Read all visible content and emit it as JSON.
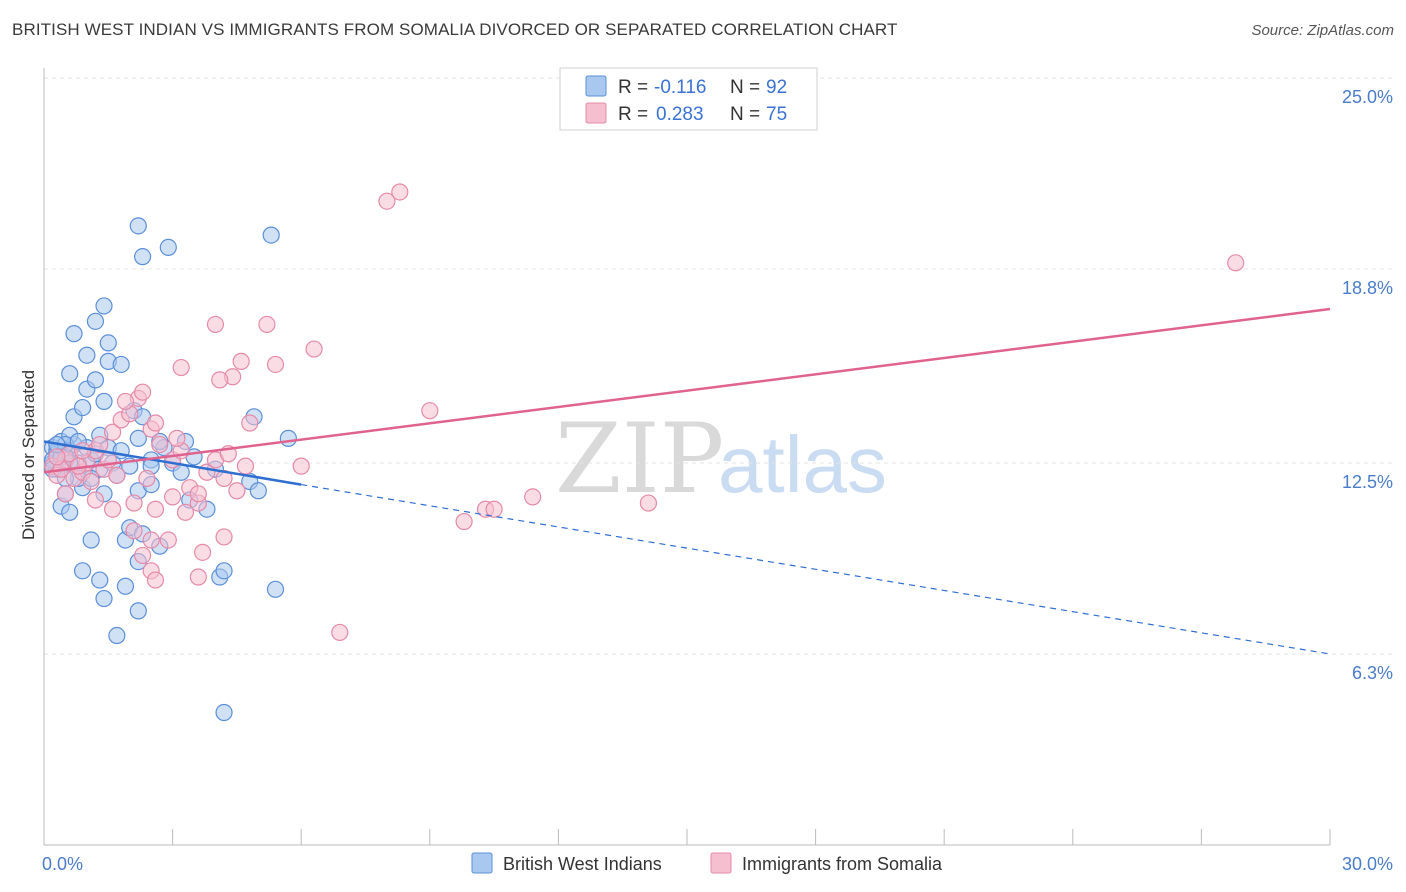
{
  "header": {
    "title": "BRITISH WEST INDIAN VS IMMIGRANTS FROM SOMALIA DIVORCED OR SEPARATED CORRELATION CHART",
    "source": "Source: ZipAtlas.com"
  },
  "watermark": {
    "zip": "ZIP",
    "atlas": "atlas"
  },
  "colors": {
    "blue_fill": "#a9c8ef",
    "blue_stroke": "#5b8fd8",
    "blue_line": "#2f6fd0",
    "pink_fill": "#f5bfd0",
    "pink_stroke": "#e58aa8",
    "pink_line": "#e0628f",
    "axis_label": "#4a7cc9",
    "grid": "#e3e3e3"
  },
  "legend": {
    "r_label": "R =",
    "n_label": "N =",
    "entries": [
      {
        "series": "blue",
        "r": "-0.116",
        "n": "92"
      },
      {
        "series": "pink",
        "r": "0.283",
        "n": "75"
      }
    ]
  },
  "chart_data": {
    "type": "scatter",
    "title": "BRITISH WEST INDIAN VS IMMIGRANTS FROM SOMALIA DIVORCED OR SEPARATED CORRELATION CHART",
    "xlabel": "",
    "ylabel": "Divorced or Separated",
    "xlim": [
      0,
      30
    ],
    "ylim": [
      0,
      26
    ],
    "x_tick_labels": [
      {
        "value": 0,
        "label": "0.0%"
      },
      {
        "value": 30,
        "label": "30.0%"
      }
    ],
    "y_tick_labels": [
      {
        "value": 25.0,
        "label": "25.0%"
      },
      {
        "value": 18.8,
        "label": "18.8%"
      },
      {
        "value": 12.5,
        "label": "12.5%"
      },
      {
        "value": 6.3,
        "label": "6.3%"
      }
    ],
    "series": [
      {
        "name": "British West Indians",
        "color": "blue",
        "r": -0.116,
        "n": 92,
        "trend": {
          "x0": 0,
          "y0": 13.2,
          "x1": 6.0,
          "y1": 11.8,
          "dashed_to_x": 30,
          "dashed_to_y": 6.3
        },
        "points": [
          [
            0.2,
            13.0
          ],
          [
            0.3,
            12.8
          ],
          [
            0.2,
            12.5
          ],
          [
            0.4,
            13.2
          ],
          [
            0.5,
            12.6
          ],
          [
            0.3,
            12.3
          ],
          [
            0.6,
            12.9
          ],
          [
            0.4,
            12.4
          ],
          [
            0.7,
            13.1
          ],
          [
            0.5,
            12.7
          ],
          [
            0.8,
            12.5
          ],
          [
            0.6,
            13.4
          ],
          [
            0.9,
            12.2
          ],
          [
            1.0,
            13.0
          ],
          [
            1.1,
            12.6
          ],
          [
            0.3,
            12.9
          ],
          [
            0.5,
            13.1
          ],
          [
            0.2,
            12.6
          ],
          [
            0.4,
            12.7
          ],
          [
            0.6,
            12.5
          ],
          [
            0.8,
            13.2
          ],
          [
            1.2,
            12.8
          ],
          [
            1.3,
            12.3
          ],
          [
            1.5,
            13.0
          ],
          [
            1.6,
            12.5
          ],
          [
            1.8,
            12.9
          ],
          [
            2.0,
            12.4
          ],
          [
            2.2,
            13.3
          ],
          [
            2.5,
            12.6
          ],
          [
            2.8,
            13.0
          ],
          [
            3.0,
            12.5
          ],
          [
            3.2,
            12.2
          ],
          [
            3.5,
            12.7
          ],
          [
            4.0,
            12.3
          ],
          [
            0.7,
            14.0
          ],
          [
            0.9,
            14.3
          ],
          [
            1.0,
            14.9
          ],
          [
            1.2,
            15.2
          ],
          [
            1.4,
            14.5
          ],
          [
            0.6,
            15.4
          ],
          [
            1.0,
            16.0
          ],
          [
            1.5,
            15.8
          ],
          [
            1.8,
            15.7
          ],
          [
            0.7,
            16.7
          ],
          [
            1.5,
            16.4
          ],
          [
            1.2,
            17.1
          ],
          [
            1.4,
            17.6
          ],
          [
            2.1,
            14.2
          ],
          [
            2.3,
            14.0
          ],
          [
            2.7,
            13.2
          ],
          [
            0.4,
            11.1
          ],
          [
            0.5,
            11.5
          ],
          [
            0.6,
            10.9
          ],
          [
            0.9,
            11.7
          ],
          [
            1.1,
            12.0
          ],
          [
            1.4,
            11.5
          ],
          [
            1.7,
            12.1
          ],
          [
            2.2,
            11.6
          ],
          [
            2.5,
            11.8
          ],
          [
            3.4,
            11.3
          ],
          [
            4.8,
            11.9
          ],
          [
            5.0,
            11.6
          ],
          [
            1.1,
            10.0
          ],
          [
            1.9,
            10.0
          ],
          [
            2.0,
            10.4
          ],
          [
            2.3,
            10.2
          ],
          [
            2.7,
            9.8
          ],
          [
            2.2,
            9.3
          ],
          [
            0.9,
            9.0
          ],
          [
            1.3,
            8.7
          ],
          [
            1.9,
            8.5
          ],
          [
            4.1,
            8.8
          ],
          [
            4.2,
            9.0
          ],
          [
            5.4,
            8.4
          ],
          [
            1.4,
            8.1
          ],
          [
            2.2,
            7.7
          ],
          [
            1.7,
            6.9
          ],
          [
            4.2,
            4.4
          ],
          [
            2.2,
            20.2
          ],
          [
            2.3,
            19.2
          ],
          [
            2.9,
            19.5
          ],
          [
            5.3,
            19.9
          ],
          [
            4.9,
            14.0
          ],
          [
            5.7,
            13.3
          ],
          [
            3.3,
            13.2
          ],
          [
            2.5,
            12.4
          ],
          [
            0.2,
            12.3
          ],
          [
            0.3,
            13.1
          ],
          [
            0.8,
            12.0
          ],
          [
            1.3,
            13.4
          ],
          [
            3.8,
            11.0
          ],
          [
            0.5,
            12.0
          ]
        ]
      },
      {
        "name": "Immigrants from Somalia",
        "color": "pink",
        "r": 0.283,
        "n": 75,
        "trend": {
          "x0": 0,
          "y0": 12.2,
          "x1": 30,
          "y1": 17.5
        },
        "points": [
          [
            0.2,
            12.4
          ],
          [
            0.3,
            12.1
          ],
          [
            0.5,
            12.6
          ],
          [
            0.4,
            12.3
          ],
          [
            0.7,
            12.0
          ],
          [
            0.6,
            12.8
          ],
          [
            0.9,
            12.2
          ],
          [
            1.0,
            12.5
          ],
          [
            1.2,
            12.9
          ],
          [
            1.4,
            12.3
          ],
          [
            0.3,
            12.7
          ],
          [
            0.8,
            12.4
          ],
          [
            1.1,
            11.9
          ],
          [
            1.3,
            13.1
          ],
          [
            1.5,
            12.6
          ],
          [
            1.6,
            13.5
          ],
          [
            1.8,
            13.9
          ],
          [
            2.0,
            14.1
          ],
          [
            2.2,
            14.6
          ],
          [
            2.5,
            13.6
          ],
          [
            2.7,
            13.1
          ],
          [
            1.9,
            14.5
          ],
          [
            2.3,
            14.8
          ],
          [
            2.6,
            13.8
          ],
          [
            3.0,
            12.6
          ],
          [
            3.2,
            12.9
          ],
          [
            3.4,
            11.7
          ],
          [
            3.6,
            11.2
          ],
          [
            3.8,
            12.2
          ],
          [
            4.0,
            12.6
          ],
          [
            4.2,
            12.0
          ],
          [
            4.5,
            11.6
          ],
          [
            1.2,
            11.3
          ],
          [
            1.6,
            11.0
          ],
          [
            2.1,
            11.2
          ],
          [
            2.6,
            11.0
          ],
          [
            3.0,
            11.4
          ],
          [
            3.3,
            10.9
          ],
          [
            3.6,
            11.5
          ],
          [
            2.1,
            10.3
          ],
          [
            2.5,
            10.0
          ],
          [
            2.9,
            10.0
          ],
          [
            2.3,
            9.5
          ],
          [
            2.5,
            9.0
          ],
          [
            2.6,
            8.7
          ],
          [
            3.6,
            8.8
          ],
          [
            3.7,
            9.6
          ],
          [
            4.2,
            10.1
          ],
          [
            4.4,
            15.3
          ],
          [
            4.1,
            15.2
          ],
          [
            3.2,
            15.6
          ],
          [
            4.6,
            15.8
          ],
          [
            4.0,
            17.0
          ],
          [
            5.2,
            17.0
          ],
          [
            5.4,
            15.7
          ],
          [
            6.3,
            16.2
          ],
          [
            4.8,
            13.8
          ],
          [
            6.0,
            12.4
          ],
          [
            8.0,
            21.0
          ],
          [
            8.3,
            21.3
          ],
          [
            9.0,
            14.2
          ],
          [
            9.8,
            10.6
          ],
          [
            10.3,
            11.0
          ],
          [
            10.5,
            11.0
          ],
          [
            11.4,
            11.4
          ],
          [
            14.1,
            11.2
          ],
          [
            27.8,
            19.0
          ],
          [
            6.9,
            7.0
          ],
          [
            4.3,
            12.8
          ],
          [
            0.9,
            12.9
          ],
          [
            1.7,
            12.1
          ],
          [
            0.5,
            11.5
          ],
          [
            2.4,
            12.0
          ],
          [
            3.1,
            13.3
          ],
          [
            4.7,
            12.4
          ]
        ]
      }
    ]
  },
  "bottom_legend": [
    {
      "series": "blue",
      "label": "British West Indians"
    },
    {
      "series": "pink",
      "label": "Immigrants from Somalia"
    }
  ]
}
